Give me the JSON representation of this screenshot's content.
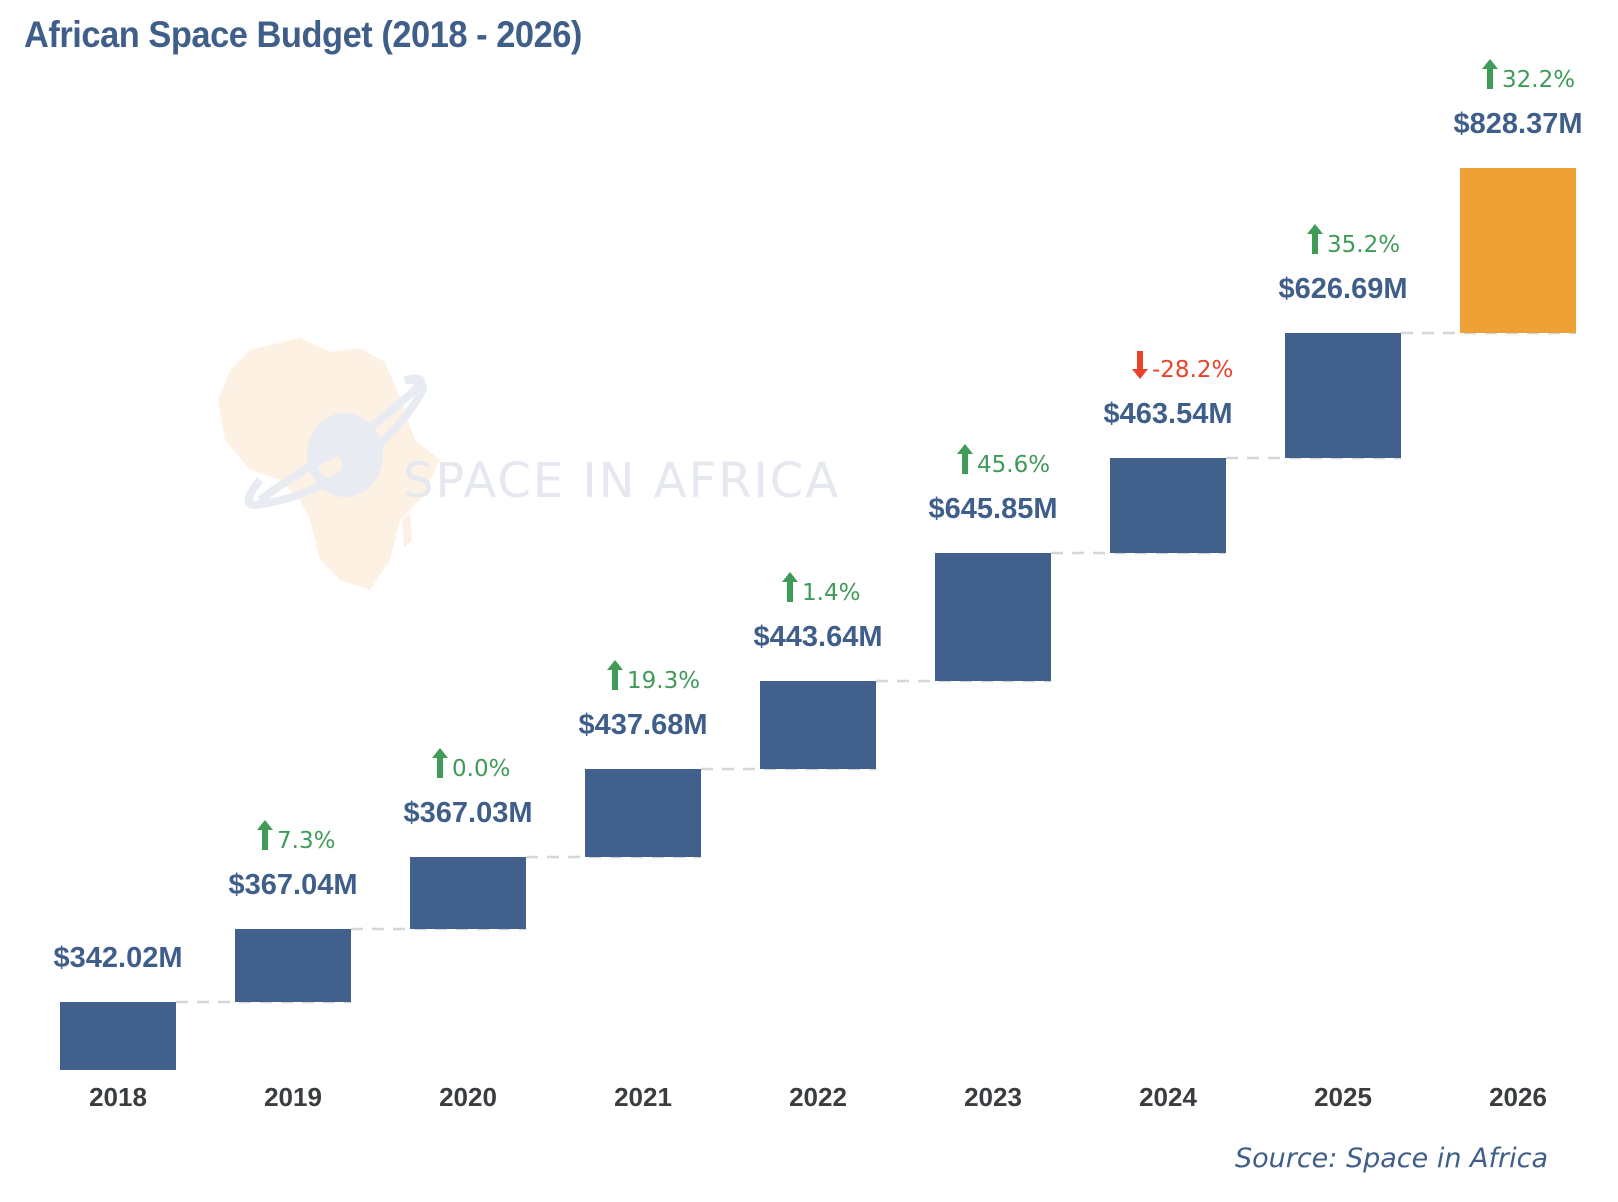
{
  "chart_data": {
    "type": "bar",
    "subtype": "stepped-waterfall",
    "title": "African Space Budget (2018 - 2026)",
    "categories": [
      "2018",
      "2019",
      "2020",
      "2021",
      "2022",
      "2023",
      "2024",
      "2025",
      "2026"
    ],
    "values": [
      342.02,
      367.04,
      367.03,
      437.68,
      443.64,
      645.85,
      463.54,
      626.69,
      828.37
    ],
    "value_labels": [
      "$342.02M",
      "$367.04M",
      "$367.03M",
      "$437.68M",
      "$443.64M",
      "$645.85M",
      "$463.54M",
      "$626.69M",
      "$828.37M"
    ],
    "unit": "USD millions",
    "changes": [
      null,
      7.3,
      0.0,
      19.3,
      1.4,
      45.6,
      -28.2,
      35.2,
      32.2
    ],
    "change_labels": [
      "",
      "7.3%",
      "0.0%",
      "19.3%",
      "1.4%",
      "45.6%",
      "-28.2%",
      "35.2%",
      "32.2%"
    ],
    "change_direction": [
      "",
      "up",
      "up",
      "up",
      "up",
      "up",
      "down",
      "up",
      "up"
    ],
    "highlight_category": "2026",
    "xlabel": "",
    "ylabel": "",
    "grid": false,
    "legend": "none",
    "colors": {
      "bar": "#41618c",
      "highlight": "#eea236",
      "up": "#3f9b57",
      "down": "#e8432a",
      "connector": "#d4d6da",
      "title": "#3f5f8a",
      "tick": "#3a3d40"
    }
  },
  "title": "African Space Budget (2018 - 2026)",
  "watermark": {
    "text": "SPACE IN AFRICA",
    "icon": "africa-satellite-logo-icon"
  },
  "source": "Source: Space in Africa"
}
